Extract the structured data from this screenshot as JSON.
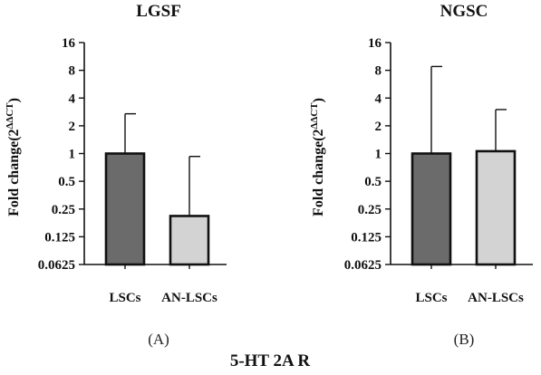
{
  "figure": {
    "caption": "5-HT 2A R"
  },
  "chart_data": [
    {
      "type": "bar",
      "title": "LGSF",
      "panel_label": "(A)",
      "ylabel_main": "Fold change(2",
      "ylabel_sup": "ΔΔCT",
      "ylabel_close": ")",
      "yscale": "log2",
      "ylim": [
        0.0625,
        16
      ],
      "yticks": [
        {
          "value": 0.0625,
          "label": "0.0625"
        },
        {
          "value": 0.125,
          "label": "0.125"
        },
        {
          "value": 0.25,
          "label": "0.25"
        },
        {
          "value": 0.5,
          "label": "0.5"
        },
        {
          "value": 1,
          "label": "1"
        },
        {
          "value": 2,
          "label": "2"
        },
        {
          "value": 4,
          "label": "4"
        },
        {
          "value": 8,
          "label": "8"
        },
        {
          "value": 16,
          "label": "16"
        }
      ],
      "categories": [
        "LSCs",
        "AN-LSCs"
      ],
      "values": [
        1.0,
        0.21
      ],
      "error_upper": [
        2.7,
        0.93
      ],
      "colors": [
        "#6b6b6b",
        "#d3d3d3"
      ],
      "grid": false
    },
    {
      "type": "bar",
      "title": "NGSC",
      "panel_label": "(B)",
      "ylabel_main": "Fold change(2",
      "ylabel_sup": "ΔΔCT",
      "ylabel_close": ")",
      "yscale": "log2",
      "ylim": [
        0.0625,
        16
      ],
      "yticks": [
        {
          "value": 0.0625,
          "label": "0.0625"
        },
        {
          "value": 0.125,
          "label": "0.125"
        },
        {
          "value": 0.25,
          "label": "0.25"
        },
        {
          "value": 0.5,
          "label": "0.5"
        },
        {
          "value": 1,
          "label": "1"
        },
        {
          "value": 2,
          "label": "2"
        },
        {
          "value": 4,
          "label": "4"
        },
        {
          "value": 8,
          "label": "8"
        },
        {
          "value": 16,
          "label": "16"
        }
      ],
      "categories": [
        "LSCs",
        "AN-LSCs"
      ],
      "values": [
        1.0,
        1.06
      ],
      "error_upper": [
        8.8,
        3.0
      ],
      "colors": [
        "#6b6b6b",
        "#d3d3d3"
      ],
      "grid": false
    }
  ]
}
